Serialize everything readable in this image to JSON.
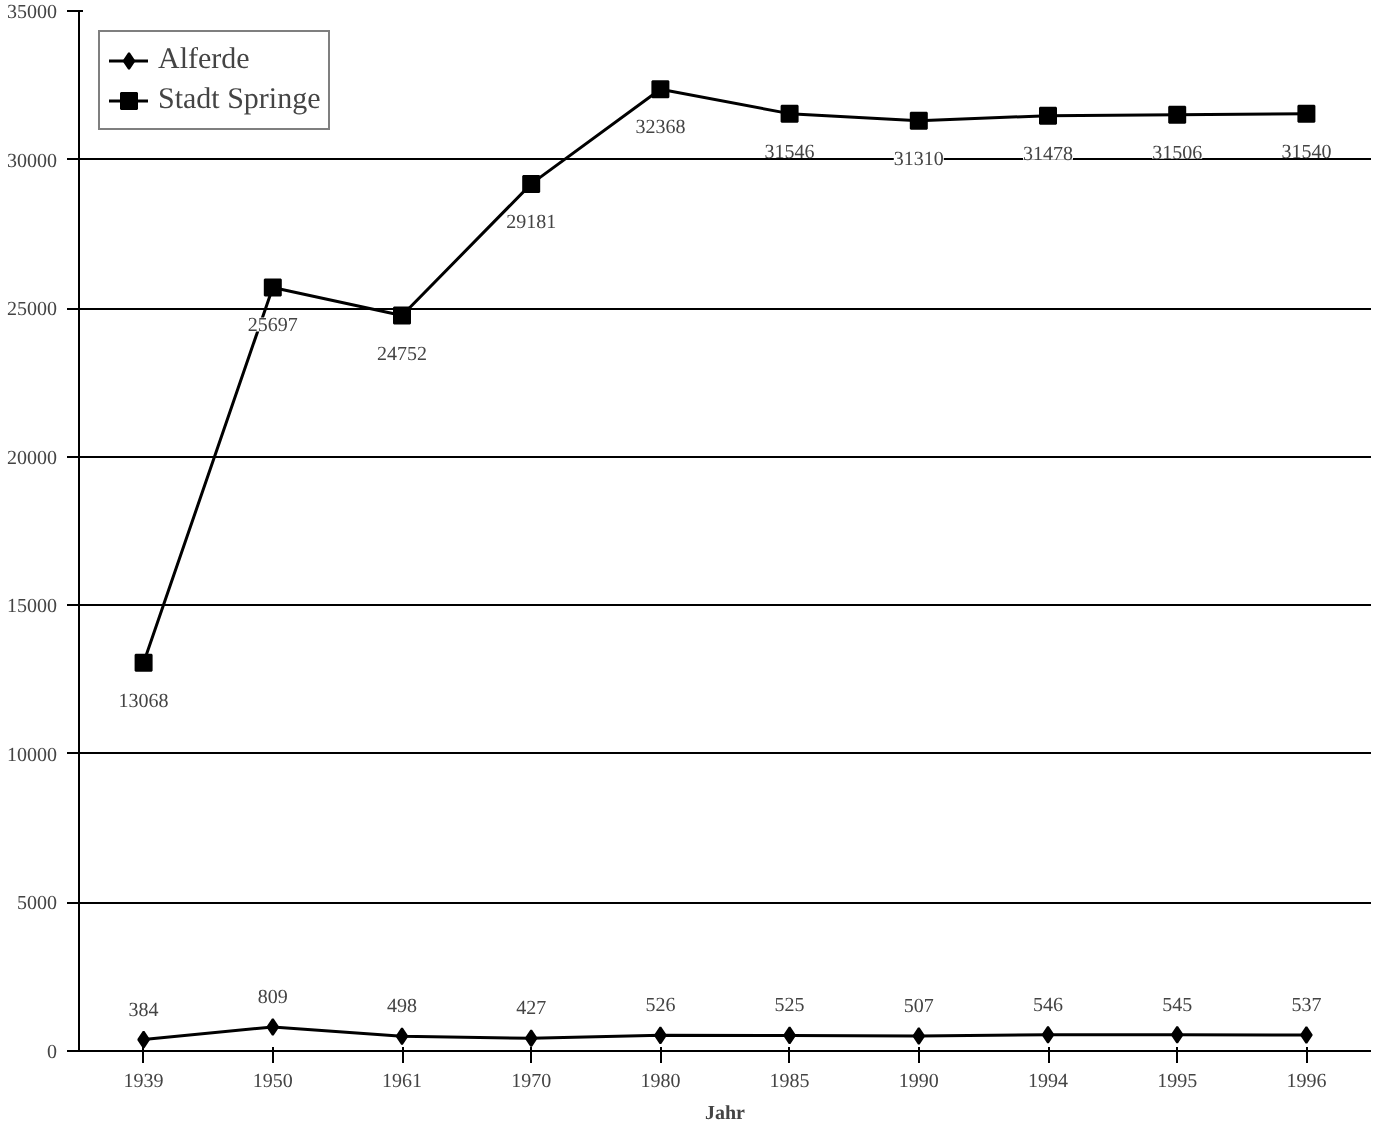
{
  "chart_data": {
    "type": "line",
    "xlabel": "Jahr",
    "categories": [
      "1939",
      "1950",
      "1961",
      "1970",
      "1980",
      "1985",
      "1990",
      "1994",
      "1995",
      "1996"
    ],
    "series": [
      {
        "name": "Alferde",
        "color": "#000000",
        "marker": "diamond",
        "values": [
          384,
          809,
          498,
          427,
          526,
          525,
          507,
          546,
          545,
          537
        ]
      },
      {
        "name": "Stadt Springe",
        "color": "#000000",
        "marker": "square",
        "values": [
          13068,
          25697,
          24752,
          29181,
          32368,
          31546,
          31310,
          31478,
          31506,
          31540
        ]
      }
    ],
    "ylim": [
      0,
      35000
    ],
    "yticks": [
      0,
      5000,
      10000,
      15000,
      20000,
      25000,
      30000,
      35000
    ],
    "grid": "y",
    "legend": "top left",
    "data_labels": true
  }
}
